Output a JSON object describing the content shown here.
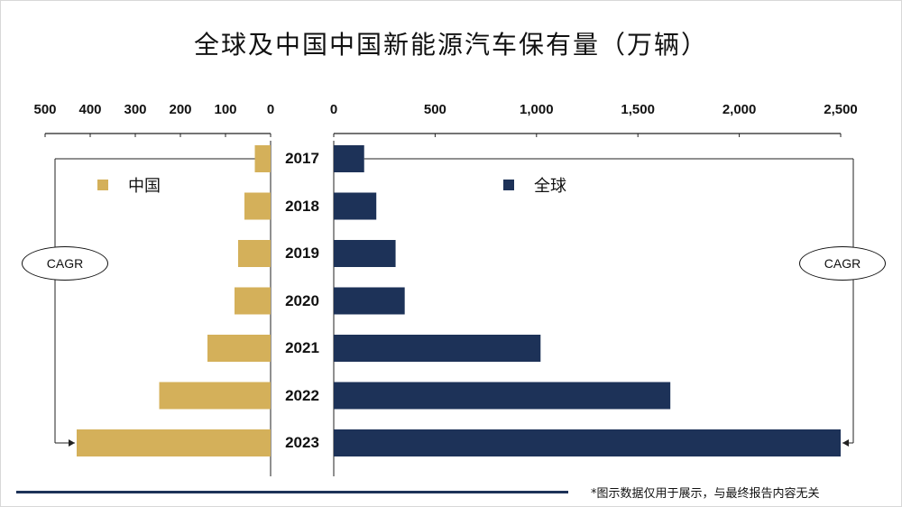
{
  "title": "全球及中国中国新能源汽车保有量（万辆）",
  "footnote": "*图示数据仅用于展示，与最终报告内容无关",
  "cagr_label": "CAGR",
  "colors": {
    "china": "#d4b05a",
    "global": "#1d3258"
  },
  "chart_data": {
    "type": "bar",
    "orientation": "horizontal-butterfly",
    "title": "全球及中国中国新能源汽车保有量（万辆）",
    "categories": [
      "2017",
      "2018",
      "2019",
      "2020",
      "2021",
      "2022",
      "2023"
    ],
    "series": [
      {
        "name": "中国",
        "values": [
          35,
          58,
          72,
          80,
          140,
          247,
          430
        ],
        "xlim": [
          0,
          500
        ],
        "ticks": [
          "500",
          "400",
          "300",
          "200",
          "100",
          "0"
        ]
      },
      {
        "name": "全球",
        "values": [
          150,
          210,
          305,
          350,
          1020,
          1660,
          2500
        ],
        "xlim": [
          0,
          2500
        ],
        "ticks": [
          "0",
          "500",
          "1,000",
          "1,500",
          "2,000",
          "2,500"
        ]
      }
    ],
    "grid": false,
    "legend": "inside-top"
  }
}
